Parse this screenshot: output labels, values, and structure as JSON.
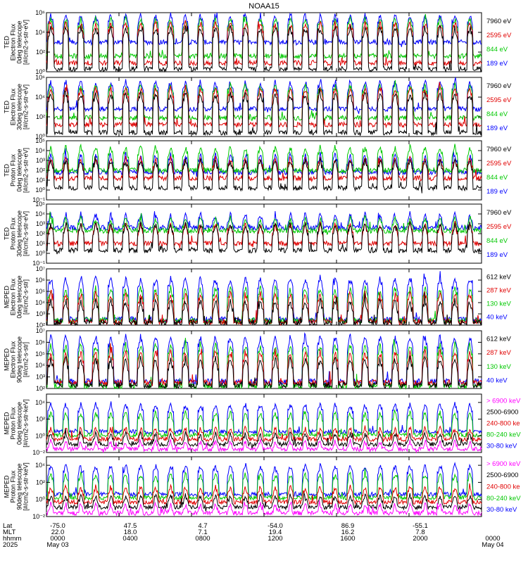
{
  "chart_data": {
    "type": "line",
    "title": "NOAA15",
    "x_range": [
      "2025-05-03 00:00",
      "2025-05-04 00:00"
    ],
    "panels": [
      {
        "ylabel": [
          "TED",
          "Electron Flux",
          "0deg telescope",
          "[#/cm2-s-str-eV]"
        ],
        "ylim": [
          1,
          1000000
        ],
        "scale": "log",
        "tick_exps": [
          0,
          2,
          4,
          6
        ],
        "series": [
          {
            "name": "7960 eV",
            "color": "#000000",
            "base_exp": 0.3,
            "peak_exp": 4.5
          },
          {
            "name": "2595 eV",
            "color": "#e00000",
            "base_exp": 0.9,
            "peak_exp": 5.0
          },
          {
            "name": "844 eV",
            "color": "#00c800",
            "base_exp": 1.6,
            "peak_exp": 5.4
          },
          {
            "name": "189 eV",
            "color": "#0000ff",
            "base_exp": 3.0,
            "peak_exp": 5.8
          }
        ]
      },
      {
        "ylabel": [
          "TED",
          "Electron Flux",
          "30deg telescope",
          "[#/cm2-s-str-eV]"
        ],
        "ylim": [
          1,
          1000000
        ],
        "scale": "log",
        "tick_exps": [
          0,
          2,
          4,
          6
        ],
        "series": [
          {
            "name": "7960 eV",
            "color": "#000000",
            "base_exp": 0.4,
            "peak_exp": 4.4
          },
          {
            "name": "2595 eV",
            "color": "#e00000",
            "base_exp": 1.2,
            "peak_exp": 4.9
          },
          {
            "name": "844 eV",
            "color": "#00c800",
            "base_exp": 1.9,
            "peak_exp": 5.2
          },
          {
            "name": "189 eV",
            "color": "#0000ff",
            "base_exp": 2.8,
            "peak_exp": 5.6
          }
        ]
      },
      {
        "ylabel": [
          "TED",
          "Proton Flux",
          "0deg telescope",
          "[#/cm2-s-str-eV]"
        ],
        "ylim": [
          0.1,
          100000
        ],
        "scale": "log",
        "tick_exps": [
          -1,
          0,
          1,
          2,
          3,
          4,
          5
        ],
        "series": [
          {
            "name": "7960 eV",
            "color": "#000000",
            "base_exp": 0.2,
            "peak_exp": 3.0
          },
          {
            "name": "2595 eV",
            "color": "#e00000",
            "base_exp": 1.2,
            "peak_exp": 3.2
          },
          {
            "name": "844 eV",
            "color": "#00c800",
            "base_exp": 2.0,
            "peak_exp": 4.4
          },
          {
            "name": "189 eV",
            "color": "#0000ff",
            "base_exp": 1.8,
            "peak_exp": 3.6
          }
        ]
      },
      {
        "ylabel": [
          "TED",
          "Proton Flux",
          "30deg telescope",
          "[#/cm2-s-str-eV]"
        ],
        "ylim": [
          0.1,
          100000
        ],
        "scale": "log",
        "tick_exps": [
          -1,
          0,
          1,
          2,
          3,
          4,
          5
        ],
        "series": [
          {
            "name": "7960 eV",
            "color": "#000000",
            "base_exp": 0.3,
            "peak_exp": 3.0
          },
          {
            "name": "2595 eV",
            "color": "#e00000",
            "base_exp": 1.0,
            "peak_exp": 3.0
          },
          {
            "name": "844 eV",
            "color": "#00c800",
            "base_exp": 2.3,
            "peak_exp": 3.6
          },
          {
            "name": "189 eV",
            "color": "#0000ff",
            "base_exp": 2.6,
            "peak_exp": 4.0
          }
        ]
      },
      {
        "ylabel": [
          "MEPED",
          "Electron Flux",
          "0deg telescope",
          "[#/cm2-s-str]"
        ],
        "ylim": [
          100,
          10000000
        ],
        "scale": "log",
        "tick_exps": [
          2,
          3,
          4,
          5,
          6,
          7
        ],
        "series": [
          {
            "name": "612 keV",
            "color": "#000000",
            "base_exp": 2.2,
            "peak_exp": 4.2
          },
          {
            "name": "287 keV",
            "color": "#e00000",
            "base_exp": 2.3,
            "peak_exp": 4.8
          },
          {
            "name": "130 keV",
            "color": "#00c800",
            "base_exp": 2.4,
            "peak_exp": 5.3
          },
          {
            "name": "40 keV",
            "color": "#0000ff",
            "base_exp": 2.5,
            "peak_exp": 6.2
          }
        ]
      },
      {
        "ylabel": [
          "MEPED",
          "Electron Flux",
          "90deg telescope",
          "[#/cm2-s-str]"
        ],
        "ylim": [
          100,
          10000000
        ],
        "scale": "log",
        "tick_exps": [
          2,
          3,
          4,
          5,
          6,
          7
        ],
        "series": [
          {
            "name": "612 keV",
            "color": "#000000",
            "base_exp": 2.3,
            "peak_exp": 4.6
          },
          {
            "name": "287 keV",
            "color": "#e00000",
            "base_exp": 2.5,
            "peak_exp": 5.2
          },
          {
            "name": "130 keV",
            "color": "#00c800",
            "base_exp": 2.2,
            "peak_exp": 5.8
          },
          {
            "name": "40 keV",
            "color": "#0000ff",
            "base_exp": 2.6,
            "peak_exp": 6.5
          }
        ]
      },
      {
        "ylabel": [
          "MEPED",
          "Proton Flux",
          "0deg telescope",
          "[#/cm2-s-str-keV]"
        ],
        "ylim": [
          0.01,
          100000
        ],
        "scale": "log",
        "tick_exps": [
          -2,
          0,
          2,
          4
        ],
        "series": [
          {
            "name": "> 6900 keV",
            "color": "#ff00ff",
            "base_exp": -1.6,
            "peak_exp": -0.6
          },
          {
            "name": "2500-6900",
            "color": "#000000",
            "base_exp": -1.0,
            "peak_exp": 0.3
          },
          {
            "name": "240-800 ke",
            "color": "#e00000",
            "base_exp": -0.4,
            "peak_exp": 1.0
          },
          {
            "name": "80-240 keV",
            "color": "#00c800",
            "base_exp": 0.1,
            "peak_exp": 2.8
          },
          {
            "name": "30-80 keV",
            "color": "#0000ff",
            "base_exp": 0.5,
            "peak_exp": 3.8
          }
        ]
      },
      {
        "ylabel": [
          "MEPED",
          "Proton Flux",
          "90deg telescope",
          "[#/cm2-s-str-keV]"
        ],
        "ylim": [
          0.01,
          100000
        ],
        "scale": "log",
        "tick_exps": [
          -2,
          0,
          2,
          4
        ],
        "series": [
          {
            "name": "> 6900 keV",
            "color": "#ff00ff",
            "base_exp": -1.6,
            "peak_exp": -0.5
          },
          {
            "name": "2500-6900",
            "color": "#000000",
            "base_exp": -0.9,
            "peak_exp": 0.5
          },
          {
            "name": "240-800 ke",
            "color": "#e00000",
            "base_exp": -0.3,
            "peak_exp": 1.5
          },
          {
            "name": "80-240 keV",
            "color": "#00c800",
            "base_exp": 0.2,
            "peak_exp": 3.0
          },
          {
            "name": "30-80 keV",
            "color": "#0000ff",
            "base_exp": 0.6,
            "peak_exp": 4.0
          }
        ]
      }
    ],
    "footer": {
      "row_labels": [
        "Lat",
        "MLT",
        "hhmm",
        "2025"
      ],
      "columns": [
        {
          "lat": "-75.0",
          "mlt": "22.0",
          "hhmm": "0000",
          "date": "May 03"
        },
        {
          "lat": "47.5",
          "mlt": "18.0",
          "hhmm": "0400",
          "date": ""
        },
        {
          "lat": "4.7",
          "mlt": "7.1",
          "hhmm": "0800",
          "date": ""
        },
        {
          "lat": "-54.0",
          "mlt": "19.4",
          "hhmm": "1200",
          "date": ""
        },
        {
          "lat": "86.9",
          "mlt": "16.2",
          "hhmm": "1600",
          "date": ""
        },
        {
          "lat": "-55.1",
          "mlt": "7.8",
          "hhmm": "2000",
          "date": ""
        },
        {
          "lat": "",
          "mlt": "",
          "hhmm": "0000",
          "date": "May 04"
        }
      ]
    }
  }
}
